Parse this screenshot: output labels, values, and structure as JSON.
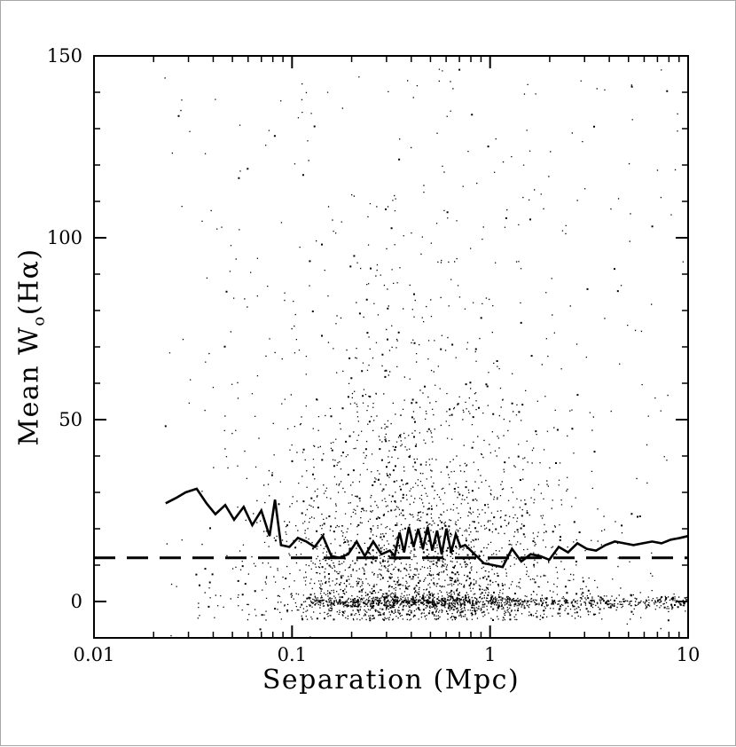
{
  "page": {
    "background": "#ffffff",
    "border_color": "#a6a6a6"
  },
  "chart_data": {
    "type": "scatter",
    "title": "",
    "xlabel": "Separation (Mpc)",
    "ylabel_parts": {
      "prefix": "Mean W",
      "sub": "o",
      "suffix": "(Hα)"
    },
    "x_scale": "log",
    "xlim": [
      0.01,
      10
    ],
    "ylim": [
      -10,
      150
    ],
    "grid": false,
    "legend": "none",
    "marker_color": "#000000",
    "axis_color": "#000000",
    "x_ticks": [
      {
        "value": 0.01,
        "label": "0.01"
      },
      {
        "value": 0.1,
        "label": "0.1"
      },
      {
        "value": 1,
        "label": "1"
      },
      {
        "value": 10,
        "label": "10"
      }
    ],
    "y_ticks": [
      {
        "value": 0,
        "label": "0"
      },
      {
        "value": 50,
        "label": "50"
      },
      {
        "value": 100,
        "label": "100"
      },
      {
        "value": 150,
        "label": "150"
      }
    ],
    "y_minor_step": 10,
    "threshold_line": {
      "style": "dashed",
      "y": 12,
      "color": "#000000",
      "width": 3,
      "dash": "24 13"
    },
    "mean_line": {
      "style": "solid",
      "color": "#000000",
      "width": 2.6,
      "points": [
        [
          0.023,
          27
        ],
        [
          0.026,
          28.5
        ],
        [
          0.029,
          30
        ],
        [
          0.033,
          31
        ],
        [
          0.037,
          27
        ],
        [
          0.041,
          24
        ],
        [
          0.046,
          26.5
        ],
        [
          0.051,
          22.5
        ],
        [
          0.057,
          26
        ],
        [
          0.063,
          21
        ],
        [
          0.07,
          25
        ],
        [
          0.077,
          18
        ],
        [
          0.082,
          28
        ],
        [
          0.088,
          15.5
        ],
        [
          0.097,
          15
        ],
        [
          0.107,
          17.5
        ],
        [
          0.118,
          16.5
        ],
        [
          0.13,
          15
        ],
        [
          0.143,
          18
        ],
        [
          0.158,
          12.5
        ],
        [
          0.174,
          12
        ],
        [
          0.192,
          13
        ],
        [
          0.212,
          16.5
        ],
        [
          0.233,
          12.5
        ],
        [
          0.257,
          16.5
        ],
        [
          0.283,
          13
        ],
        [
          0.312,
          14
        ],
        [
          0.33,
          12.5
        ],
        [
          0.349,
          19
        ],
        [
          0.368,
          13.5
        ],
        [
          0.389,
          20.5
        ],
        [
          0.411,
          15
        ],
        [
          0.434,
          20
        ],
        [
          0.458,
          14.5
        ],
        [
          0.484,
          20.5
        ],
        [
          0.511,
          14
        ],
        [
          0.54,
          19.5
        ],
        [
          0.57,
          13
        ],
        [
          0.602,
          20
        ],
        [
          0.636,
          13.5
        ],
        [
          0.671,
          18.5
        ],
        [
          0.709,
          15
        ],
        [
          0.749,
          15.5
        ],
        [
          0.835,
          13
        ],
        [
          0.931,
          10.5
        ],
        [
          1.038,
          10
        ],
        [
          1.157,
          9.5
        ],
        [
          1.29,
          14.5
        ],
        [
          1.438,
          11
        ],
        [
          1.603,
          13
        ],
        [
          1.787,
          12.5
        ],
        [
          1.992,
          11.5
        ],
        [
          2.221,
          15
        ],
        [
          2.476,
          13.5
        ],
        [
          2.76,
          16
        ],
        [
          3.077,
          14.5
        ],
        [
          3.43,
          14
        ],
        [
          3.824,
          15.5
        ],
        [
          4.263,
          16.5
        ],
        [
          4.752,
          16
        ],
        [
          5.297,
          15.5
        ],
        [
          5.905,
          16
        ],
        [
          6.583,
          16.5
        ],
        [
          7.338,
          16
        ],
        [
          8.18,
          17
        ],
        [
          9.119,
          17.5
        ],
        [
          10.0,
          18
        ]
      ]
    },
    "scatter_spec": {
      "seed": 42,
      "components": [
        {
          "name": "main-cloud",
          "n": 2600,
          "x_log10": {
            "dist": "normal",
            "mu": -0.38,
            "sigma": 0.42,
            "min": -1.65,
            "max": 1.0
          },
          "y": {
            "dist": "exponential",
            "scale": 26,
            "offset": -5,
            "max": 148
          }
        },
        {
          "name": "zero-band",
          "n": 700,
          "x_log10": {
            "dist": "uniform",
            "min": -0.92,
            "max": 1.0
          },
          "y": {
            "dist": "normal",
            "mu": 0,
            "sigma": 1.0,
            "min": -4,
            "max": 4
          }
        },
        {
          "name": "zero-band-core",
          "n": 260,
          "x_log10": {
            "dist": "normal",
            "mu": -0.35,
            "sigma": 0.28,
            "min": -0.95,
            "max": 1.0
          },
          "y": {
            "dist": "normal",
            "mu": 0,
            "sigma": 0.7,
            "min": -3,
            "max": 3
          }
        },
        {
          "name": "sparse-field",
          "n": 260,
          "x_log10": {
            "dist": "uniform",
            "min": -1.65,
            "max": 1.0
          },
          "y": {
            "dist": "uniform",
            "min": -10,
            "max": 148
          }
        }
      ]
    }
  }
}
